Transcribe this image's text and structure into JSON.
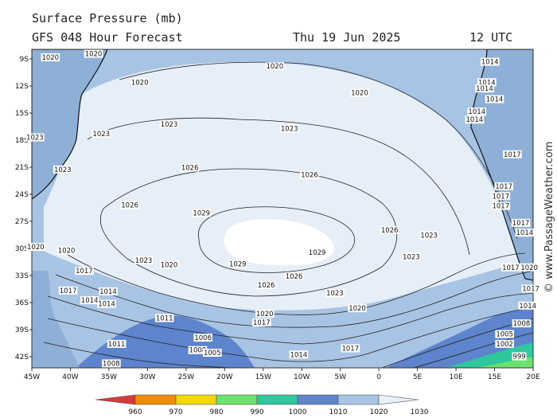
{
  "header": {
    "title": "Surface Pressure (mb)",
    "subtitle": "GFS 048 Hour Forecast",
    "date": "Thu 19 Jun 2025",
    "time": "12 UTC"
  },
  "map": {
    "lat_labels": [
      "9S",
      "12S",
      "15S",
      "18S",
      "21S",
      "24S",
      "27S",
      "30S",
      "33S",
      "36S",
      "39S",
      "42S"
    ],
    "lon_labels": [
      "45W",
      "40W",
      "35W",
      "30W",
      "25W",
      "20W",
      "15W",
      "10W",
      "5W",
      "0",
      "5E",
      "10E",
      "15E",
      "20E"
    ],
    "isobars": [
      {
        "text": "1020",
        "lon": -42.6,
        "lat": -9
      },
      {
        "text": "1020",
        "lon": -37.0,
        "lat": -8.6
      },
      {
        "text": "1020",
        "lon": -31.0,
        "lat": -11.8
      },
      {
        "text": "1020",
        "lon": -13.5,
        "lat": -10.0
      },
      {
        "text": "1020",
        "lon": -2.5,
        "lat": -13.0
      },
      {
        "text": "1023",
        "lon": -27.2,
        "lat": -16.5
      },
      {
        "text": "1023",
        "lon": -11.6,
        "lat": -17.0
      },
      {
        "text": "1023",
        "lon": -36.0,
        "lat": -17.6
      },
      {
        "text": "1023",
        "lon": -44.6,
        "lat": -18.0
      },
      {
        "text": "1023",
        "lon": -41.0,
        "lat": -21.6
      },
      {
        "text": "1026",
        "lon": -24.5,
        "lat": -21.4
      },
      {
        "text": "1026",
        "lon": -9.0,
        "lat": -22.2
      },
      {
        "text": "1026",
        "lon": -32.3,
        "lat": -25.6
      },
      {
        "text": "1026",
        "lon": 1.4,
        "lat": -28.4
      },
      {
        "text": "1029",
        "lon": -23.0,
        "lat": -26.5
      },
      {
        "text": "1029",
        "lon": -8.0,
        "lat": -30.9
      },
      {
        "text": "1029",
        "lon": -18.3,
        "lat": -32.2
      },
      {
        "text": "1026",
        "lon": -14.6,
        "lat": -34.6
      },
      {
        "text": "1026",
        "lon": -11.0,
        "lat": -33.6
      },
      {
        "text": "1023",
        "lon": -30.5,
        "lat": -31.8
      },
      {
        "text": "1023",
        "lon": 4.2,
        "lat": -31.4
      },
      {
        "text": "1023",
        "lon": 6.5,
        "lat": -29.0
      },
      {
        "text": "1023",
        "lon": -5.7,
        "lat": -35.5
      },
      {
        "text": "1020",
        "lon": -44.5,
        "lat": -30.3
      },
      {
        "text": "1020",
        "lon": -40.5,
        "lat": -30.7
      },
      {
        "text": "1020",
        "lon": -27.2,
        "lat": -32.3
      },
      {
        "text": "1020",
        "lon": -14.8,
        "lat": -37.8
      },
      {
        "text": "1020",
        "lon": -2.8,
        "lat": -37.2
      },
      {
        "text": "1017",
        "lon": -38.2,
        "lat": -33.0
      },
      {
        "text": "1017",
        "lon": -40.3,
        "lat": -35.2
      },
      {
        "text": "1017",
        "lon": -15.2,
        "lat": -38.8
      },
      {
        "text": "1017",
        "lon": -3.7,
        "lat": -41.7
      },
      {
        "text": "1014",
        "lon": -35.1,
        "lat": -35.3
      },
      {
        "text": "1014",
        "lon": -37.5,
        "lat": -36.3
      },
      {
        "text": "1014",
        "lon": -35.3,
        "lat": -36.7
      },
      {
        "text": "1014",
        "lon": -10.4,
        "lat": -42.4
      },
      {
        "text": "1011",
        "lon": -27.8,
        "lat": -38.3
      },
      {
        "text": "1011",
        "lon": -34.0,
        "lat": -41.2
      },
      {
        "text": "1008",
        "lon": -34.7,
        "lat": -43.4
      },
      {
        "text": "1008",
        "lon": -23.5,
        "lat": -41.9
      },
      {
        "text": "1005",
        "lon": -21.6,
        "lat": -42.2
      },
      {
        "text": "1006",
        "lon": -22.8,
        "lat": -40.5
      },
      {
        "text": "1014",
        "lon": 14.4,
        "lat": -9.5
      },
      {
        "text": "1014",
        "lon": 14.0,
        "lat": -11.8
      },
      {
        "text": "1014",
        "lon": 13.7,
        "lat": -12.5
      },
      {
        "text": "1014",
        "lon": 15.0,
        "lat": -13.7
      },
      {
        "text": "1014",
        "lon": 12.7,
        "lat": -15.1
      },
      {
        "text": "1014",
        "lon": 12.4,
        "lat": -16.0
      },
      {
        "text": "1017",
        "lon": 17.3,
        "lat": -19.9
      },
      {
        "text": "1017",
        "lon": 16.2,
        "lat": -23.5
      },
      {
        "text": "1017",
        "lon": 15.8,
        "lat": -24.6
      },
      {
        "text": "1017",
        "lon": 15.8,
        "lat": -25.7
      },
      {
        "text": "1017",
        "lon": 18.4,
        "lat": -27.6
      },
      {
        "text": "1014",
        "lon": 18.9,
        "lat": -28.7
      },
      {
        "text": "1014",
        "lon": 19.3,
        "lat": -36.9
      },
      {
        "text": "1008",
        "lon": 18.5,
        "lat": -38.9
      },
      {
        "text": "1005",
        "lon": 16.3,
        "lat": -40.1
      },
      {
        "text": "1002",
        "lon": 16.3,
        "lat": -41.2
      },
      {
        "text": "999",
        "lon": 18.2,
        "lat": -42.6
      },
      {
        "text": "1017",
        "lon": 17.1,
        "lat": -32.6
      },
      {
        "text": "1020",
        "lon": 19.5,
        "lat": -32.6
      },
      {
        "text": "1017",
        "lon": 19.7,
        "lat": -35.0
      }
    ]
  },
  "legend": {
    "labels": [
      "960",
      "970",
      "980",
      "990",
      "1000",
      "1010",
      "1020",
      "1030"
    ],
    "colors": [
      "#d63a3a",
      "#f08c00",
      "#f5d800",
      "#6ee26e",
      "#2ec79e",
      "#5d84cc",
      "#a8c4e4",
      "#e8f0f8"
    ]
  },
  "credit": "© www.PassageWeather.com"
}
